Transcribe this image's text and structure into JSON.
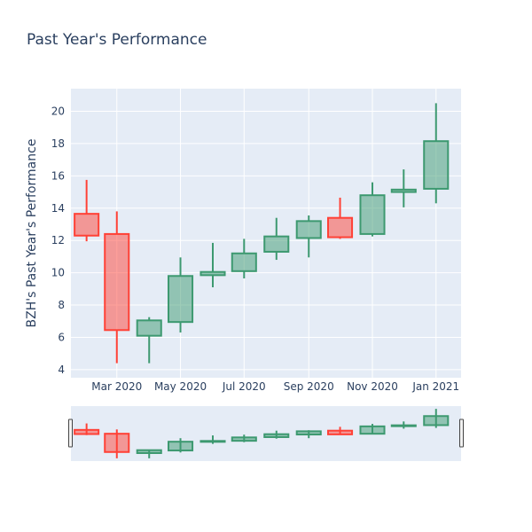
{
  "chart_data": {
    "type": "candlestick",
    "title": "Past Year's Performance",
    "xlabel": "",
    "ylabel": "BZH's Past Year's Performance",
    "ylim": [
      3.5,
      21.4
    ],
    "y_ticks": [
      4,
      6,
      8,
      10,
      12,
      14,
      16,
      18,
      20
    ],
    "x_range": [
      "2020-01-17",
      "2021-01-25"
    ],
    "x_ticks": [
      {
        "date": "2020-03-01",
        "label": "Mar 2020"
      },
      {
        "date": "2020-05-01",
        "label": "May 2020"
      },
      {
        "date": "2020-07-01",
        "label": "Jul 2020"
      },
      {
        "date": "2020-09-01",
        "label": "Sep 2020"
      },
      {
        "date": "2020-11-01",
        "label": "Nov 2020"
      },
      {
        "date": "2021-01-01",
        "label": "Jan 2021"
      }
    ],
    "candles": [
      {
        "date": "2020-02-01",
        "open": 13.65,
        "high": 15.75,
        "low": 11.95,
        "close": 12.3
      },
      {
        "date": "2020-03-01",
        "open": 12.4,
        "high": 13.8,
        "low": 4.4,
        "close": 6.45
      },
      {
        "date": "2020-04-01",
        "open": 6.1,
        "high": 7.25,
        "low": 4.4,
        "close": 7.05
      },
      {
        "date": "2020-05-01",
        "open": 6.95,
        "high": 10.95,
        "low": 6.3,
        "close": 9.8
      },
      {
        "date": "2020-06-01",
        "open": 9.85,
        "high": 11.85,
        "low": 9.1,
        "close": 10.05
      },
      {
        "date": "2020-07-01",
        "open": 10.1,
        "high": 12.1,
        "low": 9.65,
        "close": 11.2
      },
      {
        "date": "2020-08-01",
        "open": 11.3,
        "high": 13.4,
        "low": 10.8,
        "close": 12.25
      },
      {
        "date": "2020-09-01",
        "open": 12.15,
        "high": 13.55,
        "low": 10.95,
        "close": 13.2
      },
      {
        "date": "2020-10-01",
        "open": 13.4,
        "high": 14.65,
        "low": 12.1,
        "close": 12.2
      },
      {
        "date": "2020-11-01",
        "open": 12.4,
        "high": 15.6,
        "low": 12.25,
        "close": 14.8
      },
      {
        "date": "2020-12-01",
        "open": 15.0,
        "high": 16.4,
        "low": 14.05,
        "close": 15.15
      },
      {
        "date": "2021-01-01",
        "open": 15.2,
        "high": 20.5,
        "low": 14.3,
        "close": 18.15
      }
    ],
    "increasing_color": "#3d9970",
    "decreasing_color": "#ff4136",
    "plot_bgcolor": "#e5ecf6",
    "grid": true,
    "rangeslider": true
  }
}
